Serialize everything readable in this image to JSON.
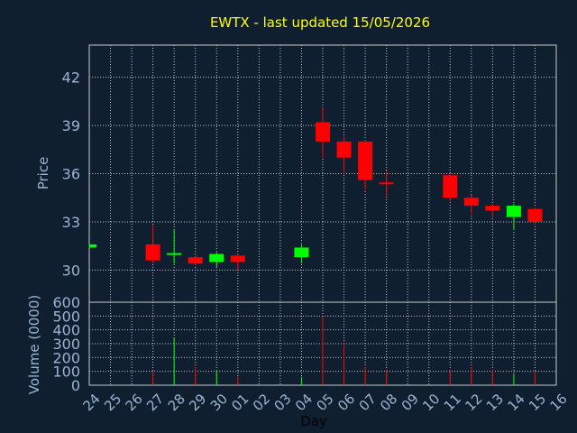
{
  "chart_data": {
    "type": "candlestick",
    "title": "EWTX - last updated 15/05/2026",
    "xlabel": "Day",
    "price_panel": {
      "ylabel": "Price",
      "ylim": [
        28,
        44
      ],
      "yticks": [
        30,
        33,
        36,
        39,
        42
      ],
      "grid": true
    },
    "volume_panel": {
      "ylabel": "Volume (0000)",
      "ylim": [
        0,
        600
      ],
      "yticks": [
        0,
        100,
        200,
        300,
        400,
        500,
        600
      ],
      "grid": true
    },
    "categories": [
      "24",
      "25",
      "26",
      "27",
      "28",
      "29",
      "30",
      "01",
      "02",
      "03",
      "04",
      "05",
      "06",
      "07",
      "08",
      "09",
      "10",
      "11",
      "12",
      "13",
      "14",
      "15",
      "16"
    ],
    "colors": {
      "up": "#00ff00",
      "down": "#ff0000",
      "grid": "#c8c8c8",
      "background": "#0f1f30"
    },
    "candles": [
      {
        "x": "24",
        "open": 31.4,
        "close": 31.6,
        "high": 31.6,
        "low": 31.4,
        "volume": 0
      },
      {
        "x": "27",
        "open": 31.6,
        "close": 30.6,
        "high": 32.8,
        "low": 30.4,
        "volume": 100
      },
      {
        "x": "28",
        "open": 30.9,
        "close": 31.0,
        "high": 32.5,
        "low": 30.4,
        "volume": 340
      },
      {
        "x": "29",
        "open": 30.8,
        "close": 30.4,
        "high": 30.9,
        "low": 30.3,
        "volume": 130
      },
      {
        "x": "30",
        "open": 30.5,
        "close": 31.0,
        "high": 31.1,
        "low": 30.2,
        "volume": 110
      },
      {
        "x": "01",
        "open": 30.9,
        "close": 30.5,
        "high": 31.0,
        "low": 30.0,
        "volume": 60
      },
      {
        "x": "04",
        "open": 30.8,
        "close": 31.4,
        "high": 31.6,
        "low": 30.4,
        "volume": 60
      },
      {
        "x": "05",
        "open": 39.2,
        "close": 38.0,
        "high": 40.1,
        "low": 37.0,
        "volume": 500
      },
      {
        "x": "06",
        "open": 38.0,
        "close": 37.0,
        "high": 38.3,
        "low": 36.0,
        "volume": 300
      },
      {
        "x": "07",
        "open": 38.0,
        "close": 35.6,
        "high": 38.1,
        "low": 35.0,
        "volume": 130
      },
      {
        "x": "08",
        "open": 35.4,
        "close": 35.3,
        "high": 36.2,
        "low": 34.6,
        "volume": 110
      },
      {
        "x": "11",
        "open": 35.9,
        "close": 34.5,
        "high": 36.0,
        "low": 34.3,
        "volume": 110
      },
      {
        "x": "12",
        "open": 34.5,
        "close": 34.0,
        "high": 34.7,
        "low": 33.5,
        "volume": 130
      },
      {
        "x": "13",
        "open": 34.0,
        "close": 33.7,
        "high": 34.1,
        "low": 33.3,
        "volume": 110
      },
      {
        "x": "14",
        "open": 33.3,
        "close": 34.0,
        "high": 34.1,
        "low": 32.5,
        "volume": 80
      },
      {
        "x": "15",
        "open": 33.8,
        "close": 33.0,
        "high": 33.9,
        "low": 32.8,
        "volume": 100
      }
    ]
  }
}
